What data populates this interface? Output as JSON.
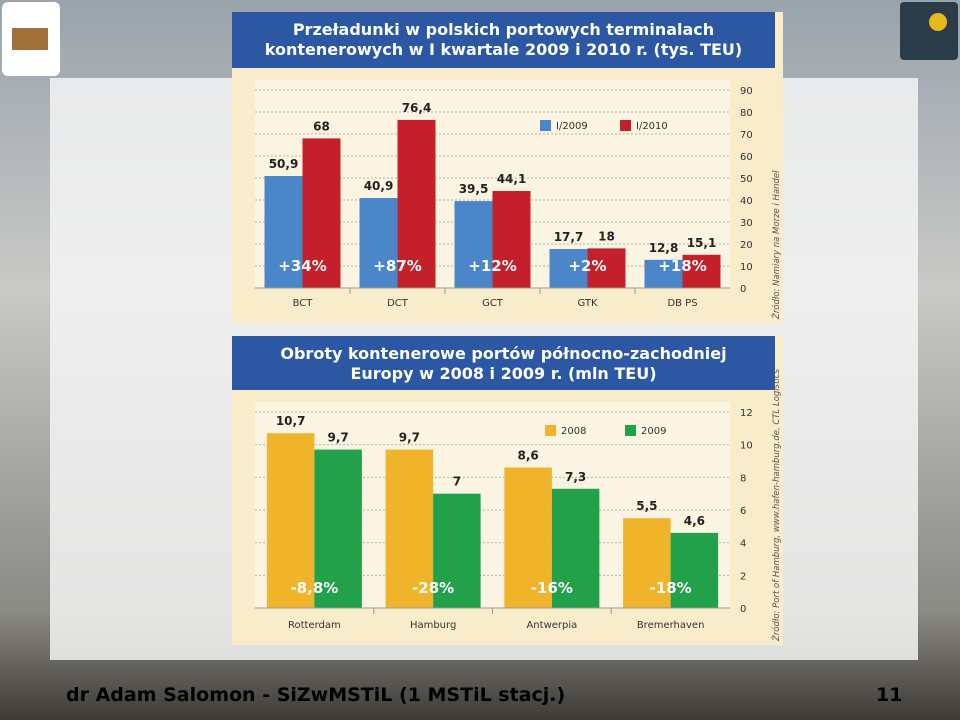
{
  "chart_data": [
    {
      "type": "bar",
      "title": "Przeładunki w polskich portowych terminalach kontenerowych w I kwartale 2009 i 2010 r. (tys. TEU)",
      "categories": [
        "BCT",
        "DCT",
        "GCT",
        "GTK",
        "DB PS"
      ],
      "series": [
        {
          "name": "I/2009",
          "color": "#4a86c8",
          "values": [
            50.9,
            40.9,
            39.5,
            17.7,
            12.8
          ],
          "value_labels": [
            "50,9",
            "40,9",
            "39,5",
            "17,7",
            "12,8"
          ]
        },
        {
          "name": "I/2010",
          "color": "#c3202c",
          "values": [
            68,
            76.4,
            44.1,
            18,
            15.1
          ],
          "value_labels": [
            "68",
            "76,4",
            "44,1",
            "18",
            "15,1"
          ]
        }
      ],
      "annotations": [
        "+34%",
        "+87%",
        "+12%",
        "+2%",
        "+18%"
      ],
      "source": "Źródło: Namiary na Morze i Handel",
      "ylim": [
        0,
        90
      ],
      "yticks": [
        0,
        10,
        20,
        30,
        40,
        50,
        60,
        70,
        80,
        90
      ],
      "grid": true,
      "legend": "top-right"
    },
    {
      "type": "bar",
      "title": "Obroty kontenerowe portów północno-zachodniej Europy w 2008 i 2009 r. (mln TEU)",
      "categories": [
        "Rotterdam",
        "Hamburg",
        "Antwerpia",
        "Bremerhaven"
      ],
      "series": [
        {
          "name": "2008",
          "color": "#f0b42a",
          "values": [
            10.7,
            9.7,
            8.6,
            5.5
          ],
          "value_labels": [
            "10,7",
            "9,7",
            "8,6",
            "5,5"
          ]
        },
        {
          "name": "2009",
          "color": "#22a04a",
          "values": [
            9.7,
            7,
            7.3,
            4.6
          ],
          "value_labels": [
            "9,7",
            "7",
            "7,3",
            "4,6"
          ]
        }
      ],
      "annotations": [
        "-8,8%",
        "-28%",
        "-16%",
        "-18%"
      ],
      "source": "Źródło: Port of Hamburg, www.hafen-hamburg.de, CTL Logistics",
      "ylim": [
        0,
        12
      ],
      "yticks": [
        0,
        2,
        4,
        6,
        8,
        10,
        12
      ],
      "grid": true,
      "legend": "top-right"
    }
  ],
  "footer": {
    "author": "dr Adam Salomon - SiZwMSTiL (1 MSTiL stacj.)",
    "page": 11
  }
}
